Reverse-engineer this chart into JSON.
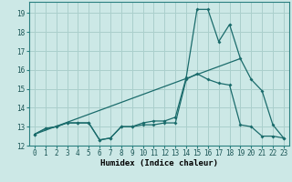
{
  "title": "",
  "xlabel": "Humidex (Indice chaleur)",
  "bg_color": "#cce8e6",
  "grid_color": "#aacfcc",
  "line_color": "#1a6b6b",
  "xlim": [
    -0.5,
    23.5
  ],
  "ylim": [
    12.0,
    19.6
  ],
  "yticks": [
    12,
    13,
    14,
    15,
    16,
    17,
    18,
    19
  ],
  "xticks": [
    0,
    1,
    2,
    3,
    4,
    5,
    6,
    7,
    8,
    9,
    10,
    11,
    12,
    13,
    14,
    15,
    16,
    17,
    18,
    19,
    20,
    21,
    22,
    23
  ],
  "curve1_x": [
    0,
    1,
    2,
    3,
    4,
    5,
    6,
    7,
    8,
    9,
    10,
    11,
    12,
    13,
    14,
    15,
    16,
    17,
    18,
    19,
    20,
    21,
    22,
    23
  ],
  "curve1_y": [
    12.6,
    12.9,
    13.0,
    13.2,
    13.2,
    13.2,
    12.3,
    12.4,
    13.0,
    13.0,
    13.1,
    13.1,
    13.2,
    13.2,
    15.5,
    15.8,
    15.5,
    15.3,
    15.2,
    13.1,
    13.0,
    12.5,
    12.5,
    12.4
  ],
  "curve2_x": [
    0,
    1,
    2,
    3,
    4,
    5,
    6,
    7,
    8,
    9,
    10,
    11,
    12,
    13,
    14,
    15,
    16,
    17,
    18,
    19,
    20,
    21,
    22,
    23
  ],
  "curve2_y": [
    12.6,
    12.9,
    13.0,
    13.2,
    13.2,
    13.2,
    12.3,
    12.4,
    13.0,
    13.0,
    13.2,
    13.3,
    13.3,
    13.5,
    15.6,
    19.2,
    19.2,
    17.5,
    18.4,
    16.6,
    15.5,
    14.9,
    13.1,
    12.4
  ],
  "curve3_x": [
    0,
    19
  ],
  "curve3_y": [
    12.6,
    16.6
  ],
  "tick_fontsize": 5.5,
  "label_fontsize": 6.5
}
